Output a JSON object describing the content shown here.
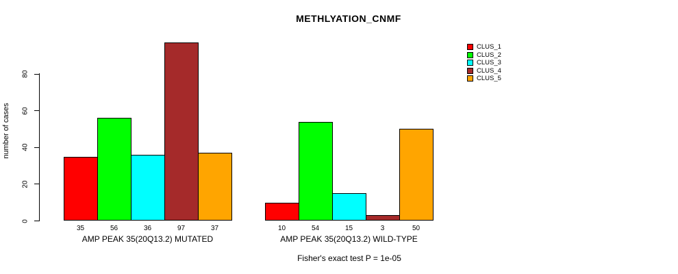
{
  "chart_data": {
    "type": "bar",
    "title": "METHLYATION_CNMF",
    "ylabel": "number of cases",
    "xlabel": "",
    "yticks": [
      0,
      20,
      40,
      60,
      80
    ],
    "ylim": [
      0,
      100
    ],
    "grid": false,
    "legend_position": "right-outside",
    "bar_value_labels": true,
    "categories": [
      "AMP PEAK 35(20Q13.2) MUTATED",
      "AMP PEAK 35(20Q13.2) WILD-TYPE"
    ],
    "series": [
      {
        "name": "CLUS_1",
        "color": "#FF0000",
        "values": [
          35,
          10
        ]
      },
      {
        "name": "CLUS_2",
        "color": "#00FF00",
        "values": [
          56,
          54
        ]
      },
      {
        "name": "CLUS_3",
        "color": "#00FFFF",
        "values": [
          36,
          15
        ]
      },
      {
        "name": "CLUS_4",
        "color": "#A52A2A",
        "values": [
          97,
          3
        ]
      },
      {
        "name": "CLUS_5",
        "color": "#FFA500",
        "values": [
          37,
          50
        ]
      }
    ],
    "annotation": "Fisher's exact test P = 1e-05"
  }
}
